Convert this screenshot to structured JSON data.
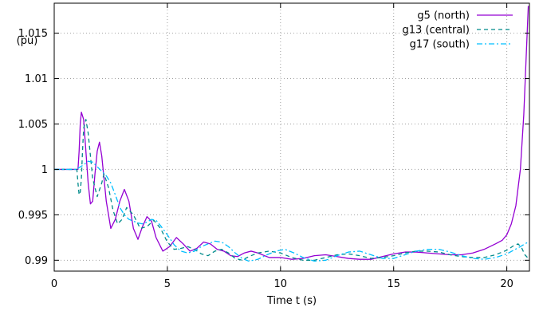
{
  "chart_data": {
    "type": "line",
    "title": "",
    "xlabel": "Time t (s)",
    "ylabel": "(pu)",
    "xlim": [
      0,
      21
    ],
    "ylim": [
      0.9888,
      1.0183
    ],
    "xticks": [
      0,
      5,
      10,
      15,
      20
    ],
    "xtick_labels": [
      "0",
      "5",
      "10",
      "15",
      "20"
    ],
    "yticks": [
      0.99,
      0.995,
      1.0,
      1.005,
      1.01,
      1.015
    ],
    "ytick_labels": [
      "0.99",
      "0.995",
      "1",
      "1.005",
      "1.01",
      "1.015"
    ],
    "grid": true,
    "legend_position": "top-right",
    "series": [
      {
        "name": "g5 (north)",
        "color": "#9400d3",
        "dash": "solid",
        "points": [
          [
            0.0,
            1.0
          ],
          [
            1.0,
            1.0
          ],
          [
            1.05,
            1.0
          ],
          [
            1.1,
            1.002
          ],
          [
            1.15,
            1.005
          ],
          [
            1.2,
            1.0063
          ],
          [
            1.3,
            1.0055
          ],
          [
            1.4,
            1.002
          ],
          [
            1.5,
            0.9985
          ],
          [
            1.6,
            0.9962
          ],
          [
            1.7,
            0.9965
          ],
          [
            1.8,
            0.9995
          ],
          [
            1.9,
            1.002
          ],
          [
            2.0,
            1.003
          ],
          [
            2.1,
            1.0015
          ],
          [
            2.3,
            0.9965
          ],
          [
            2.5,
            0.9935
          ],
          [
            2.7,
            0.9945
          ],
          [
            2.9,
            0.9965
          ],
          [
            3.1,
            0.9978
          ],
          [
            3.3,
            0.9965
          ],
          [
            3.5,
            0.9935
          ],
          [
            3.7,
            0.9923
          ],
          [
            3.9,
            0.9937
          ],
          [
            4.1,
            0.9948
          ],
          [
            4.3,
            0.9943
          ],
          [
            4.5,
            0.9925
          ],
          [
            4.8,
            0.991
          ],
          [
            5.1,
            0.9915
          ],
          [
            5.4,
            0.9925
          ],
          [
            5.7,
            0.9918
          ],
          [
            6.0,
            0.991
          ],
          [
            6.3,
            0.9913
          ],
          [
            6.6,
            0.992
          ],
          [
            6.9,
            0.9918
          ],
          [
            7.2,
            0.9912
          ],
          [
            7.5,
            0.991
          ],
          [
            7.8,
            0.9905
          ],
          [
            8.1,
            0.9904
          ],
          [
            8.4,
            0.9908
          ],
          [
            8.7,
            0.991
          ],
          [
            9.0,
            0.9908
          ],
          [
            9.5,
            0.9903
          ],
          [
            10.0,
            0.9903
          ],
          [
            10.5,
            0.9901
          ],
          [
            11.0,
            0.9902
          ],
          [
            11.5,
            0.9905
          ],
          [
            12.0,
            0.9906
          ],
          [
            12.5,
            0.9904
          ],
          [
            13.0,
            0.9902
          ],
          [
            13.5,
            0.9901
          ],
          [
            14.0,
            0.9901
          ],
          [
            14.5,
            0.9904
          ],
          [
            15.0,
            0.9907
          ],
          [
            15.5,
            0.9909
          ],
          [
            16.0,
            0.9909
          ],
          [
            16.5,
            0.9908
          ],
          [
            17.0,
            0.9907
          ],
          [
            17.5,
            0.9906
          ],
          [
            18.0,
            0.9906
          ],
          [
            18.5,
            0.9908
          ],
          [
            19.0,
            0.9912
          ],
          [
            19.5,
            0.9918
          ],
          [
            19.8,
            0.9922
          ],
          [
            20.0,
            0.9928
          ],
          [
            20.2,
            0.994
          ],
          [
            20.4,
            0.996
          ],
          [
            20.6,
            1.0
          ],
          [
            20.75,
            1.006
          ],
          [
            20.85,
            1.012
          ],
          [
            20.95,
            1.018
          ]
        ]
      },
      {
        "name": "g13 (central)",
        "color": "#008b8b",
        "dash": "dashed",
        "points": [
          [
            0.0,
            1.0
          ],
          [
            1.0,
            1.0
          ],
          [
            1.05,
            0.9985
          ],
          [
            1.1,
            0.9972
          ],
          [
            1.15,
            0.9975
          ],
          [
            1.2,
            0.999
          ],
          [
            1.25,
            1.002
          ],
          [
            1.3,
            1.0045
          ],
          [
            1.4,
            1.0055
          ],
          [
            1.5,
            1.004
          ],
          [
            1.7,
            0.999
          ],
          [
            1.9,
            0.997
          ],
          [
            2.1,
            0.9985
          ],
          [
            2.2,
            0.9995
          ],
          [
            2.4,
            0.998
          ],
          [
            2.6,
            0.9955
          ],
          [
            2.8,
            0.994
          ],
          [
            3.0,
            0.9945
          ],
          [
            3.2,
            0.9958
          ],
          [
            3.5,
            0.995
          ],
          [
            3.8,
            0.9935
          ],
          [
            4.1,
            0.9937
          ],
          [
            4.4,
            0.9944
          ],
          [
            4.7,
            0.9935
          ],
          [
            5.0,
            0.992
          ],
          [
            5.3,
            0.9912
          ],
          [
            5.6,
            0.9913
          ],
          [
            5.9,
            0.9915
          ],
          [
            6.2,
            0.9912
          ],
          [
            6.5,
            0.9907
          ],
          [
            6.8,
            0.9905
          ],
          [
            7.1,
            0.991
          ],
          [
            7.4,
            0.9912
          ],
          [
            7.7,
            0.9908
          ],
          [
            8.0,
            0.9902
          ],
          [
            8.3,
            0.99
          ],
          [
            8.6,
            0.9904
          ],
          [
            9.0,
            0.9908
          ],
          [
            9.5,
            0.991
          ],
          [
            10.0,
            0.9908
          ],
          [
            10.5,
            0.9903
          ],
          [
            11.0,
            0.99
          ],
          [
            11.5,
            0.99
          ],
          [
            12.0,
            0.9903
          ],
          [
            12.5,
            0.9906
          ],
          [
            13.0,
            0.9907
          ],
          [
            13.5,
            0.9905
          ],
          [
            14.0,
            0.9902
          ],
          [
            14.5,
            0.9903
          ],
          [
            15.0,
            0.9905
          ],
          [
            15.5,
            0.9908
          ],
          [
            16.0,
            0.991
          ],
          [
            16.5,
            0.991
          ],
          [
            17.0,
            0.9909
          ],
          [
            17.5,
            0.9906
          ],
          [
            18.0,
            0.9904
          ],
          [
            18.5,
            0.9903
          ],
          [
            19.0,
            0.9903
          ],
          [
            19.5,
            0.9906
          ],
          [
            20.0,
            0.9911
          ],
          [
            20.3,
            0.9916
          ],
          [
            20.5,
            0.9918
          ],
          [
            20.65,
            0.9914
          ],
          [
            20.8,
            0.9906
          ],
          [
            20.95,
            0.9902
          ]
        ]
      },
      {
        "name": "g17 (south)",
        "color": "#00bfff",
        "dash": "dashdot",
        "points": [
          [
            0.0,
            1.0
          ],
          [
            1.0,
            1.0
          ],
          [
            1.1,
            1.0002
          ],
          [
            1.3,
            1.0005
          ],
          [
            1.5,
            1.0009
          ],
          [
            1.7,
            1.0008
          ],
          [
            1.9,
            1.0003
          ],
          [
            2.1,
            0.9998
          ],
          [
            2.3,
            0.9993
          ],
          [
            2.5,
            0.9985
          ],
          [
            2.7,
            0.9972
          ],
          [
            2.9,
            0.9958
          ],
          [
            3.1,
            0.995
          ],
          [
            3.3,
            0.9945
          ],
          [
            3.5,
            0.9943
          ],
          [
            3.7,
            0.9941
          ],
          [
            3.9,
            0.994
          ],
          [
            4.1,
            0.9942
          ],
          [
            4.3,
            0.9945
          ],
          [
            4.5,
            0.9944
          ],
          [
            4.7,
            0.9938
          ],
          [
            5.0,
            0.9928
          ],
          [
            5.3,
            0.9917
          ],
          [
            5.6,
            0.991
          ],
          [
            5.9,
            0.9908
          ],
          [
            6.2,
            0.991
          ],
          [
            6.5,
            0.9915
          ],
          [
            6.8,
            0.9918
          ],
          [
            7.1,
            0.9921
          ],
          [
            7.4,
            0.992
          ],
          [
            7.7,
            0.9915
          ],
          [
            8.0,
            0.9908
          ],
          [
            8.3,
            0.9902
          ],
          [
            8.6,
            0.9899
          ],
          [
            9.0,
            0.9901
          ],
          [
            9.4,
            0.9906
          ],
          [
            9.8,
            0.991
          ],
          [
            10.2,
            0.9912
          ],
          [
            10.6,
            0.9908
          ],
          [
            11.0,
            0.9903
          ],
          [
            11.5,
            0.9899
          ],
          [
            12.0,
            0.99
          ],
          [
            12.5,
            0.9905
          ],
          [
            13.0,
            0.9909
          ],
          [
            13.5,
            0.991
          ],
          [
            14.0,
            0.9906
          ],
          [
            14.5,
            0.9902
          ],
          [
            15.0,
            0.9902
          ],
          [
            15.5,
            0.9906
          ],
          [
            16.0,
            0.991
          ],
          [
            16.5,
            0.9912
          ],
          [
            17.0,
            0.9912
          ],
          [
            17.5,
            0.9909
          ],
          [
            18.0,
            0.9905
          ],
          [
            18.5,
            0.9902
          ],
          [
            19.0,
            0.9901
          ],
          [
            19.5,
            0.9903
          ],
          [
            20.0,
            0.9907
          ],
          [
            20.3,
            0.9911
          ],
          [
            20.6,
            0.9915
          ],
          [
            20.8,
            0.9918
          ],
          [
            20.95,
            0.992
          ]
        ]
      }
    ]
  }
}
